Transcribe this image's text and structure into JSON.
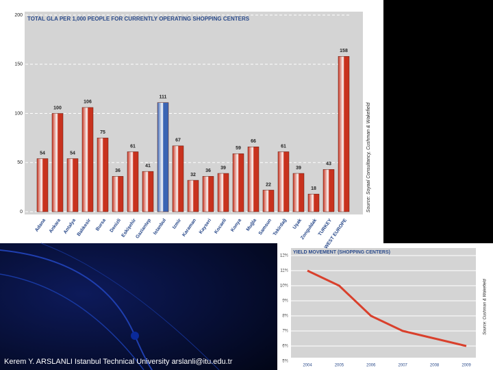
{
  "footer": "Kerem Y. ARSLANLI Istanbul Technical University arslanli@itu.edu.tr",
  "chart_data": [
    {
      "type": "bar",
      "title": "TOTAL GLA PER 1,000 PEOPLE FOR CURRENTLY OPERATING SHOPPING CENTERS",
      "source": "Source: Soyaal Consultancy, Cushman & Wakefield",
      "categories": [
        "Adana",
        "Ankara",
        "Antalya",
        "Balıkesir",
        "Bursa",
        "Denizli",
        "Eskişehir",
        "Gaziantep",
        "Istanbul",
        "Izmir",
        "Karaman",
        "Kayseri",
        "Kocaeli",
        "Konya",
        "Muğla",
        "Samsun",
        "Tekirdağ",
        "Uşak",
        "Zonguldak",
        "TURKEY",
        "WEST EUROPE"
      ],
      "values": [
        54,
        100,
        54,
        106,
        75,
        36,
        61,
        41,
        111,
        67,
        32,
        36,
        39,
        59,
        66,
        22,
        61,
        39,
        18,
        43,
        158
      ],
      "colors": [
        "#c8321e",
        "#c8321e",
        "#c8321e",
        "#c8321e",
        "#c8321e",
        "#c8321e",
        "#c8321e",
        "#c8321e",
        "#3a64b4",
        "#c8321e",
        "#c8321e",
        "#c8321e",
        "#c8321e",
        "#c8321e",
        "#c8321e",
        "#c8321e",
        "#c8321e",
        "#c8321e",
        "#c8321e",
        "#c8321e",
        "#c8321e"
      ],
      "ylim": [
        0,
        200
      ],
      "yticks": [
        0,
        50,
        100,
        150,
        200
      ],
      "grid": true
    },
    {
      "type": "line",
      "title": "YIELD MOVEMENT (SHOPPING CENTERS)",
      "source": "Source: Cushman & Wakefield",
      "categories": [
        "2004",
        "2005",
        "2006",
        "2007",
        "2008",
        "2009"
      ],
      "values": [
        11,
        10,
        8,
        7,
        6.5,
        6
      ],
      "color": "#d9402c",
      "ylim": [
        5,
        12
      ],
      "yticks": [
        {
          "value": 5,
          "label": "5%"
        },
        {
          "value": 6,
          "label": "6%"
        },
        {
          "value": 7,
          "label": "7%"
        },
        {
          "value": 8,
          "label": "8%"
        },
        {
          "value": 9,
          "label": "9%"
        },
        {
          "value": 10,
          "label": "10%"
        },
        {
          "value": 11,
          "label": "11%"
        },
        {
          "value": 12,
          "label": "12%"
        }
      ],
      "grid": true
    }
  ]
}
